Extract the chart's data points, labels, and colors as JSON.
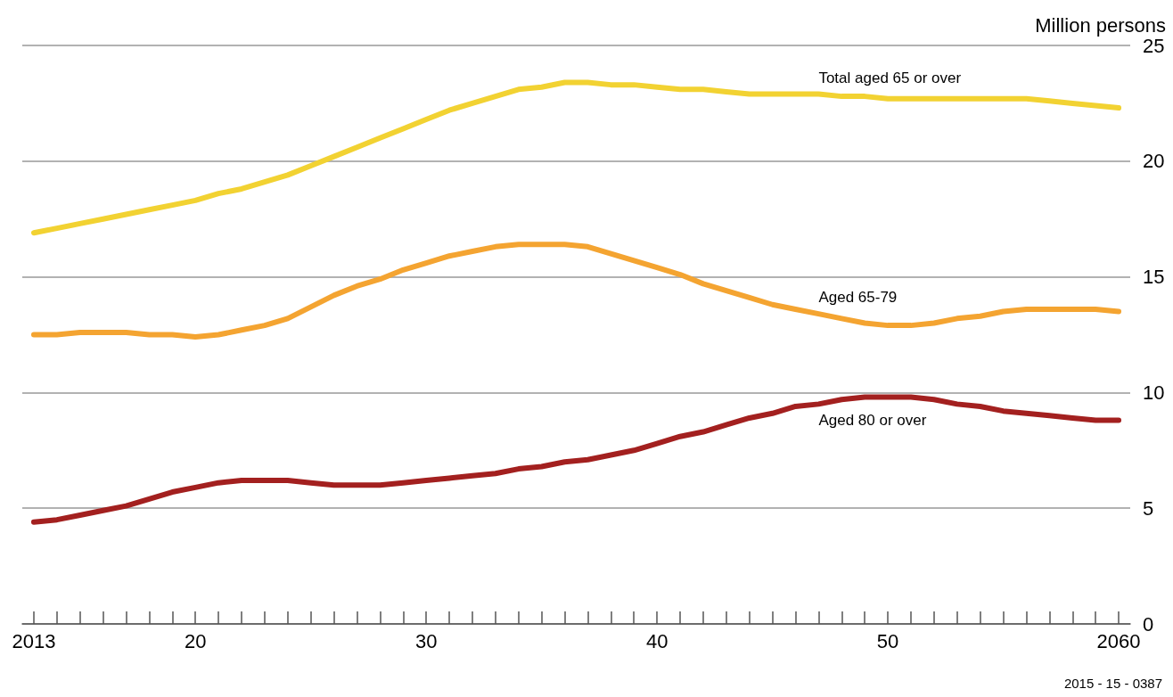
{
  "chart_data": {
    "type": "line",
    "ylabel": "Million persons",
    "annotations": [
      "2015 - 15 - 0387"
    ],
    "x": [
      2013,
      2014,
      2015,
      2016,
      2017,
      2018,
      2019,
      2020,
      2021,
      2022,
      2023,
      2024,
      2025,
      2026,
      2027,
      2028,
      2029,
      2030,
      2031,
      2032,
      2033,
      2034,
      2035,
      2036,
      2037,
      2038,
      2039,
      2040,
      2041,
      2042,
      2043,
      2044,
      2045,
      2046,
      2047,
      2048,
      2049,
      2050,
      2051,
      2052,
      2053,
      2054,
      2055,
      2056,
      2057,
      2058,
      2059,
      2060
    ],
    "series": [
      {
        "name": "Total aged 65 or over",
        "color": "#f2d232",
        "values": [
          16.9,
          17.1,
          17.3,
          17.5,
          17.7,
          17.9,
          18.1,
          18.3,
          18.6,
          18.8,
          19.1,
          19.4,
          19.8,
          20.2,
          20.6,
          21.0,
          21.4,
          21.8,
          22.2,
          22.5,
          22.8,
          23.1,
          23.2,
          23.4,
          23.4,
          23.3,
          23.3,
          23.2,
          23.1,
          23.1,
          23.0,
          22.9,
          22.9,
          22.9,
          22.9,
          22.8,
          22.8,
          22.7,
          22.7,
          22.7,
          22.7,
          22.7,
          22.7,
          22.7,
          22.6,
          22.5,
          22.4,
          22.3
        ]
      },
      {
        "name": "Aged 65-79",
        "color": "#f4a431",
        "values": [
          12.5,
          12.5,
          12.6,
          12.6,
          12.6,
          12.5,
          12.5,
          12.4,
          12.5,
          12.7,
          12.9,
          13.2,
          13.7,
          14.2,
          14.6,
          14.9,
          15.3,
          15.6,
          15.9,
          16.1,
          16.3,
          16.4,
          16.4,
          16.4,
          16.3,
          16.0,
          15.7,
          15.4,
          15.1,
          14.7,
          14.4,
          14.1,
          13.8,
          13.6,
          13.4,
          13.2,
          13.0,
          12.9,
          12.9,
          13.0,
          13.2,
          13.3,
          13.5,
          13.6,
          13.6,
          13.6,
          13.6,
          13.5
        ]
      },
      {
        "name": "Aged 80 or over",
        "color": "#a3201f",
        "values": [
          4.4,
          4.5,
          4.7,
          4.9,
          5.1,
          5.4,
          5.7,
          5.9,
          6.1,
          6.2,
          6.2,
          6.2,
          6.1,
          6.0,
          6.0,
          6.0,
          6.1,
          6.2,
          6.3,
          6.4,
          6.5,
          6.7,
          6.8,
          7.0,
          7.1,
          7.3,
          7.5,
          7.8,
          8.1,
          8.3,
          8.6,
          8.9,
          9.1,
          9.4,
          9.5,
          9.7,
          9.8,
          9.8,
          9.8,
          9.7,
          9.5,
          9.4,
          9.2,
          9.1,
          9.0,
          8.9,
          8.8,
          8.8
        ]
      }
    ],
    "xlim": [
      2012.5,
      2060.5
    ],
    "xticks": [
      {
        "value": 2013,
        "label": "2013"
      },
      {
        "value": 2014,
        "label": null
      },
      {
        "value": 2015,
        "label": null
      },
      {
        "value": 2016,
        "label": null
      },
      {
        "value": 2017,
        "label": null
      },
      {
        "value": 2018,
        "label": null
      },
      {
        "value": 2019,
        "label": null
      },
      {
        "value": 2020,
        "label": "20"
      },
      {
        "value": 2021,
        "label": null
      },
      {
        "value": 2022,
        "label": null
      },
      {
        "value": 2023,
        "label": null
      },
      {
        "value": 2024,
        "label": null
      },
      {
        "value": 2025,
        "label": null
      },
      {
        "value": 2026,
        "label": null
      },
      {
        "value": 2027,
        "label": null
      },
      {
        "value": 2028,
        "label": null
      },
      {
        "value": 2029,
        "label": null
      },
      {
        "value": 2030,
        "label": "30"
      },
      {
        "value": 2031,
        "label": null
      },
      {
        "value": 2032,
        "label": null
      },
      {
        "value": 2033,
        "label": null
      },
      {
        "value": 2034,
        "label": null
      },
      {
        "value": 2035,
        "label": null
      },
      {
        "value": 2036,
        "label": null
      },
      {
        "value": 2037,
        "label": null
      },
      {
        "value": 2038,
        "label": null
      },
      {
        "value": 2039,
        "label": null
      },
      {
        "value": 2040,
        "label": "40"
      },
      {
        "value": 2041,
        "label": null
      },
      {
        "value": 2042,
        "label": null
      },
      {
        "value": 2043,
        "label": null
      },
      {
        "value": 2044,
        "label": null
      },
      {
        "value": 2045,
        "label": null
      },
      {
        "value": 2046,
        "label": null
      },
      {
        "value": 2047,
        "label": null
      },
      {
        "value": 2048,
        "label": null
      },
      {
        "value": 2049,
        "label": null
      },
      {
        "value": 2050,
        "label": "50"
      },
      {
        "value": 2051,
        "label": null
      },
      {
        "value": 2052,
        "label": null
      },
      {
        "value": 2053,
        "label": null
      },
      {
        "value": 2054,
        "label": null
      },
      {
        "value": 2055,
        "label": null
      },
      {
        "value": 2056,
        "label": null
      },
      {
        "value": 2057,
        "label": null
      },
      {
        "value": 2058,
        "label": null
      },
      {
        "value": 2059,
        "label": null
      },
      {
        "value": 2060,
        "label": "2060"
      }
    ],
    "ylim": [
      0,
      25
    ],
    "yticks": [
      0,
      5,
      10,
      15,
      20,
      25
    ],
    "grid": "y",
    "legend": false,
    "marker": "none",
    "line_style": "solid"
  }
}
